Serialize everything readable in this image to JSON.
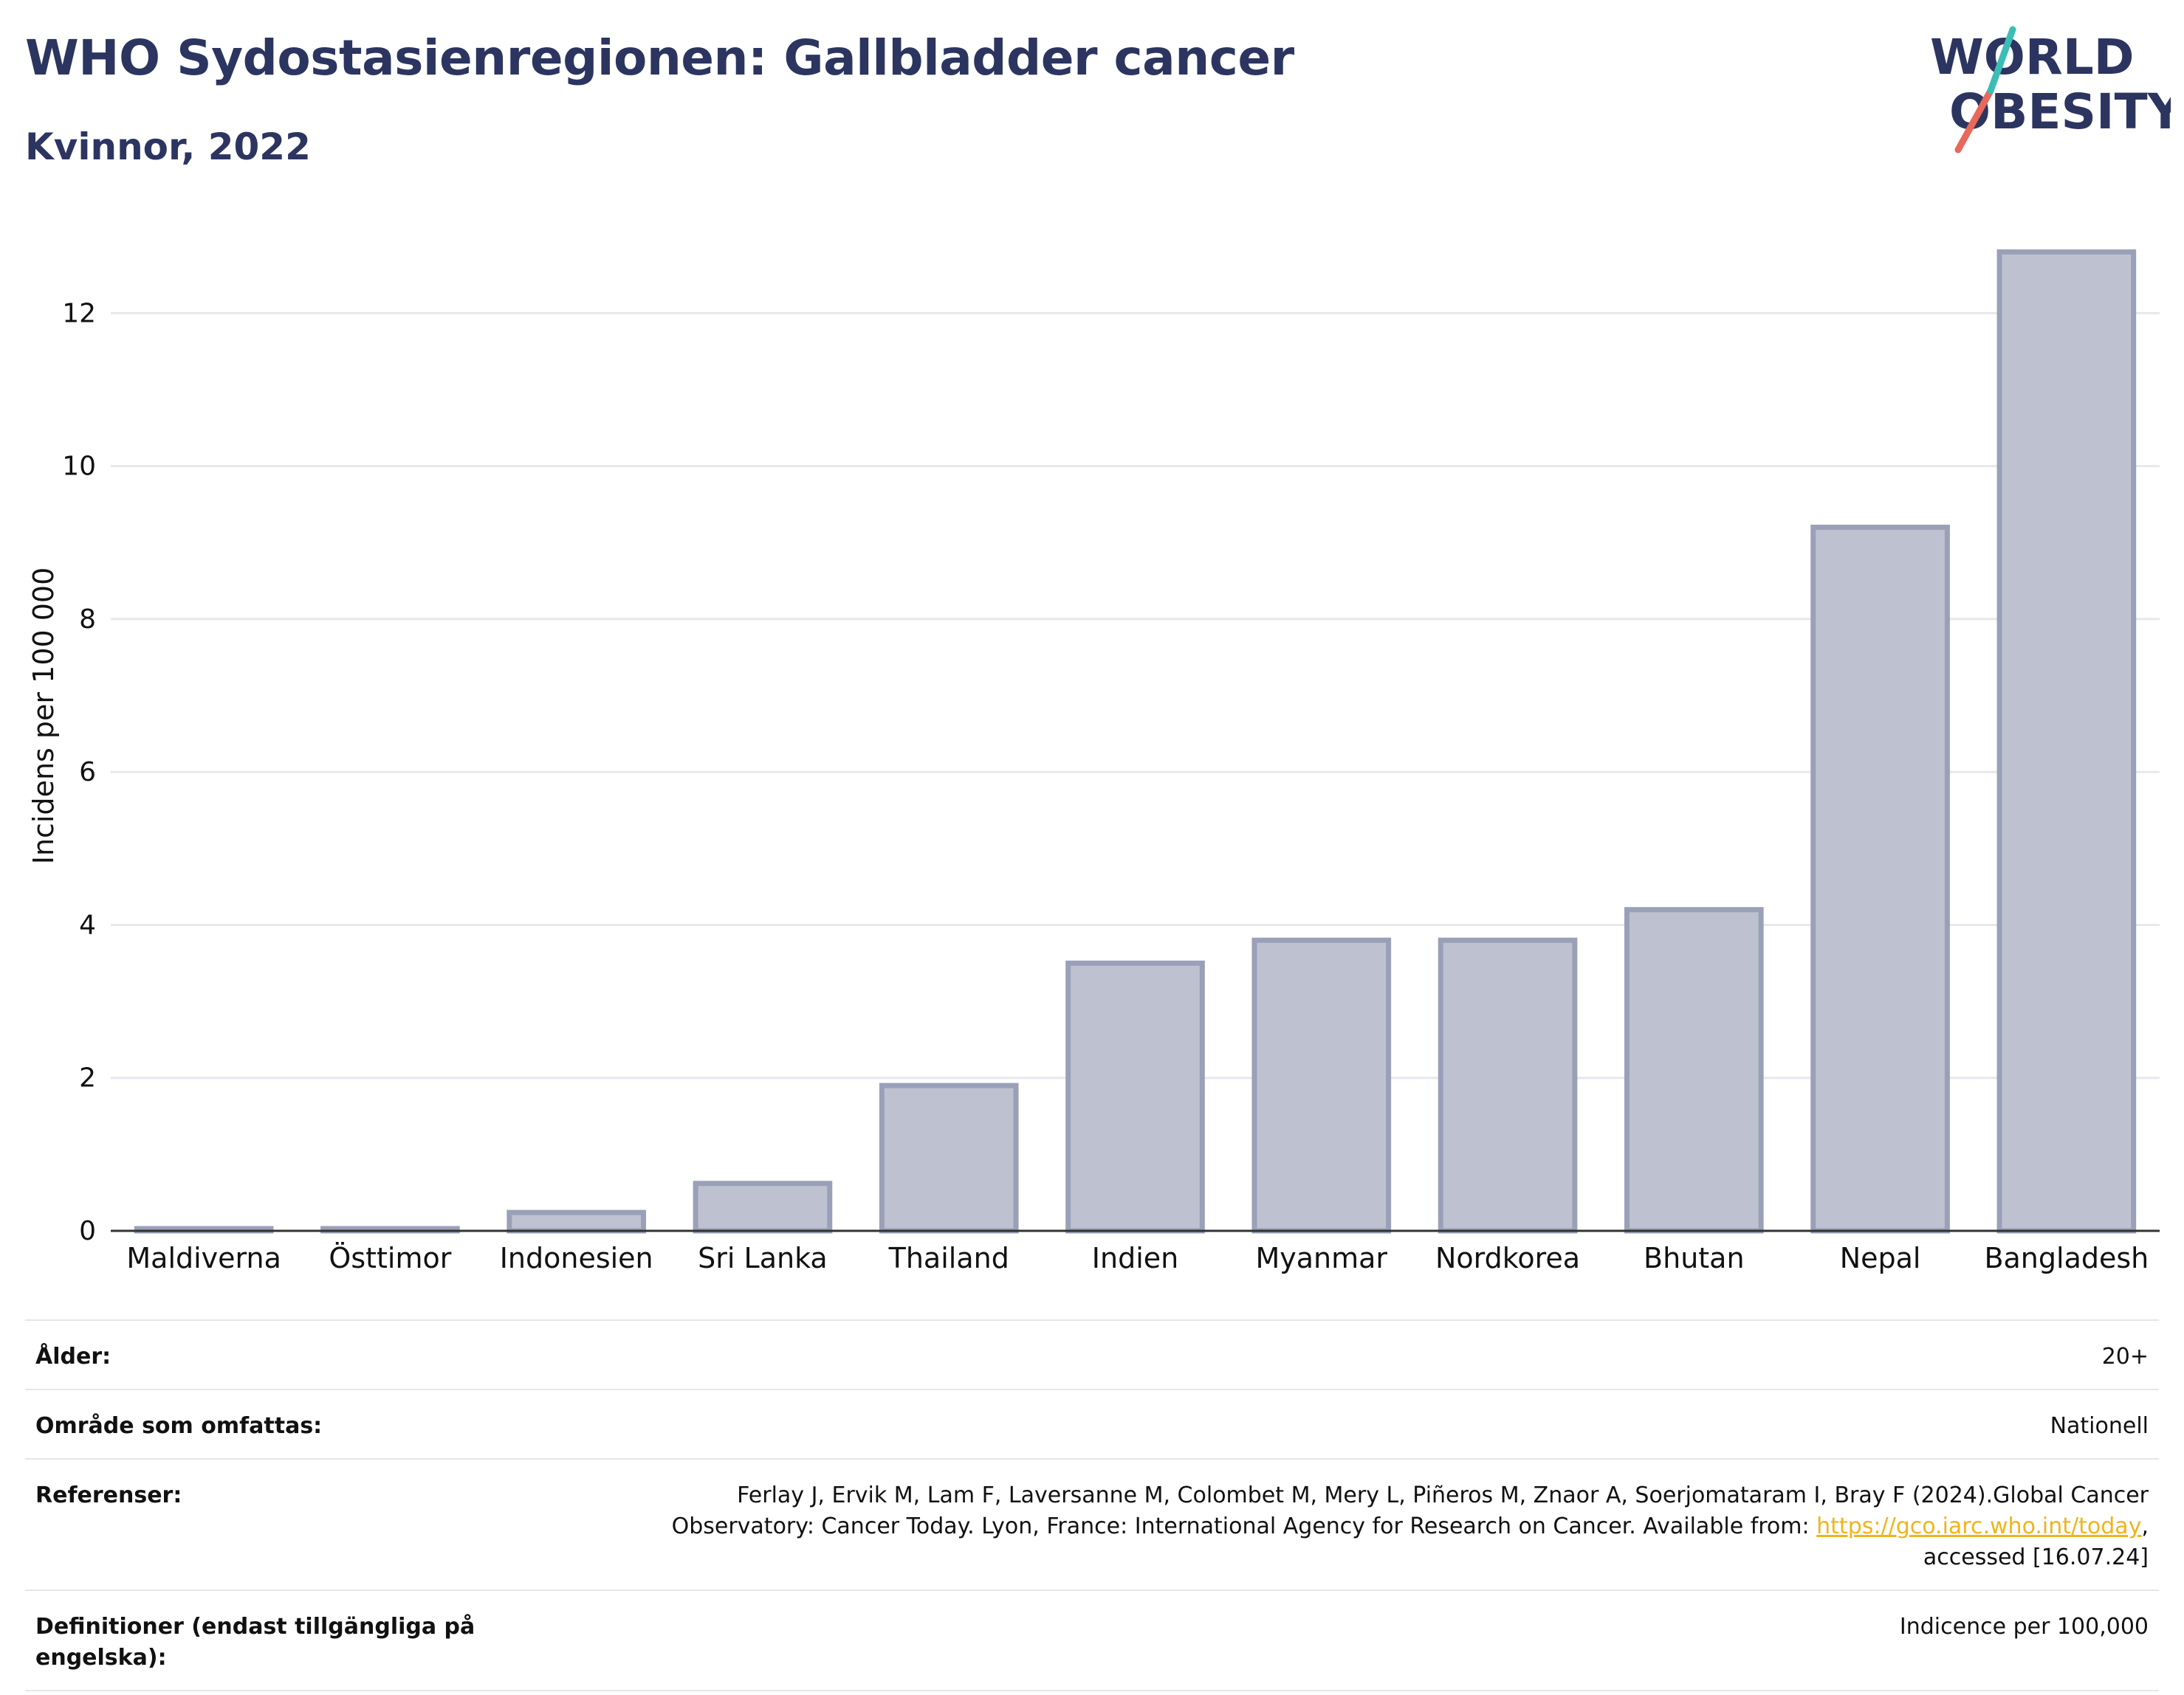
{
  "header": {
    "title": "WHO Sydostasienregionen: Gallbladder cancer",
    "subtitle": "Kvinnor, 2022"
  },
  "logo": {
    "line1": "WORLD",
    "line2": "OBESITY"
  },
  "chart_data": {
    "type": "bar",
    "categories": [
      "Maldiverna",
      "Östtimor",
      "Indonesien",
      "Sri Lanka",
      "Thailand",
      "Indien",
      "Myanmar",
      "Nordkorea",
      "Bhutan",
      "Nepal",
      "Bangladesh"
    ],
    "values": [
      0.02,
      0.02,
      0.24,
      0.62,
      1.9,
      3.5,
      3.8,
      3.8,
      4.2,
      9.2,
      12.8
    ],
    "ylabel": "Incidens per 100 000",
    "xlabel": "",
    "ylim": [
      0,
      13.2
    ],
    "yticks": [
      0,
      2,
      4,
      6,
      8,
      10,
      12
    ],
    "grid": true,
    "colors": {
      "bar_fill": "#bec2d0",
      "bar_stroke": "#9aa0b8",
      "grid": "#e6e8ee",
      "axis": "#333333"
    }
  },
  "meta": {
    "rows": [
      {
        "label": "Ålder:",
        "value": "20+"
      },
      {
        "label": "Område som omfattas:",
        "value": "Nationell"
      },
      {
        "label": "Referenser:",
        "value_before": "Ferlay J, Ervik M, Lam F, Laversanne M, Colombet M, Mery L, Piñeros M, Znaor A, Soerjomataram I, Bray F (2024).Global Cancer Observatory: Cancer Today. Lyon, France: International Agency for Research on Cancer. Available from: ",
        "link": "https://gco.iarc.who.int/today",
        "value_after": ", accessed [16.07.24]"
      },
      {
        "label": "Definitioner (endast tillgängliga på engelska):",
        "value": "Indicence per 100,000"
      }
    ]
  }
}
